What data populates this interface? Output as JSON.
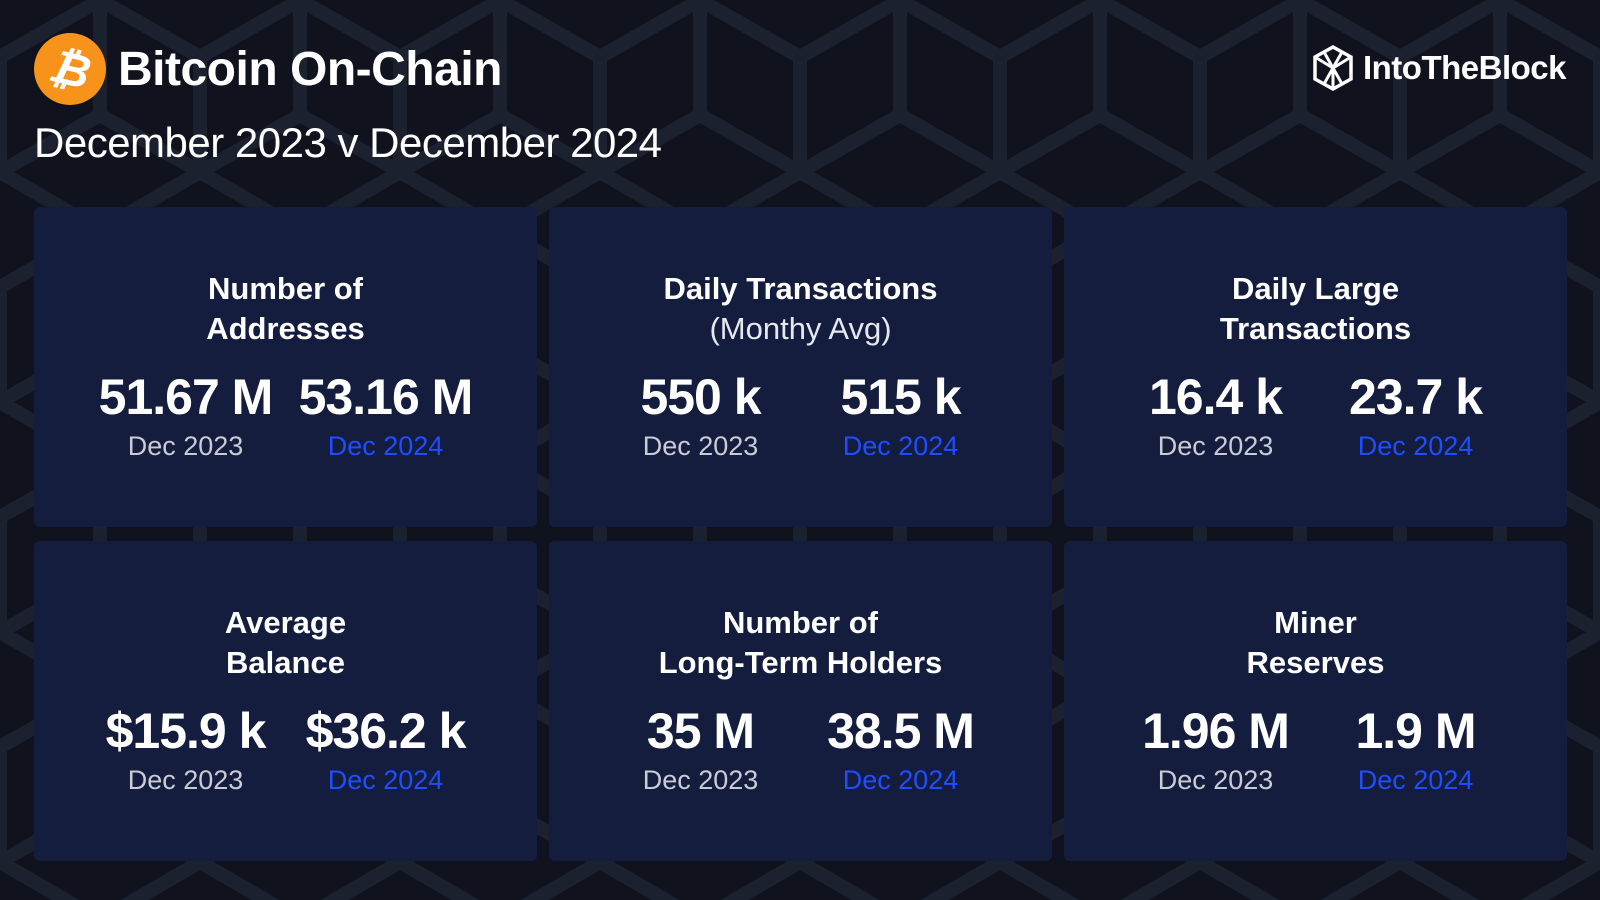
{
  "header": {
    "title": "Bitcoin On-Chain",
    "subtitle": "December 2023 v December 2024",
    "logo_symbol": "₿",
    "brand": "IntoTheBlock"
  },
  "colors": {
    "background": "#10131d",
    "card": "#141d3d",
    "bitcoin_orange": "#f7931a",
    "accent_blue": "#1f4dff"
  },
  "cards": [
    {
      "title_line1": "Number of",
      "title_line2": "Addresses",
      "value_2023": "51.67 M",
      "label_2023": "Dec 2023",
      "value_2024": "53.16 M",
      "label_2024": "Dec 2024"
    },
    {
      "title_line1": "Daily Transactions",
      "title_line2": "(Monthy Avg)",
      "value_2023": "550 k",
      "label_2023": "Dec 2023",
      "value_2024": "515 k",
      "label_2024": "Dec 2024"
    },
    {
      "title_line1": "Daily Large",
      "title_line2": "Transactions",
      "value_2023": "16.4 k",
      "label_2023": "Dec 2023",
      "value_2024": "23.7 k",
      "label_2024": "Dec 2024"
    },
    {
      "title_line1": "Average",
      "title_line2": "Balance",
      "value_2023": "$15.9 k",
      "label_2023": "Dec 2023",
      "value_2024": "$36.2 k",
      "label_2024": "Dec 2024"
    },
    {
      "title_line1": "Number of",
      "title_line2": "Long-Term Holders",
      "value_2023": "35 M",
      "label_2023": "Dec 2023",
      "value_2024": "38.5 M",
      "label_2024": "Dec 2024"
    },
    {
      "title_line1": "Miner",
      "title_line2": "Reserves",
      "value_2023": "1.96 M",
      "label_2023": "Dec 2023",
      "value_2024": "1.9 M",
      "label_2024": "Dec 2024"
    }
  ]
}
